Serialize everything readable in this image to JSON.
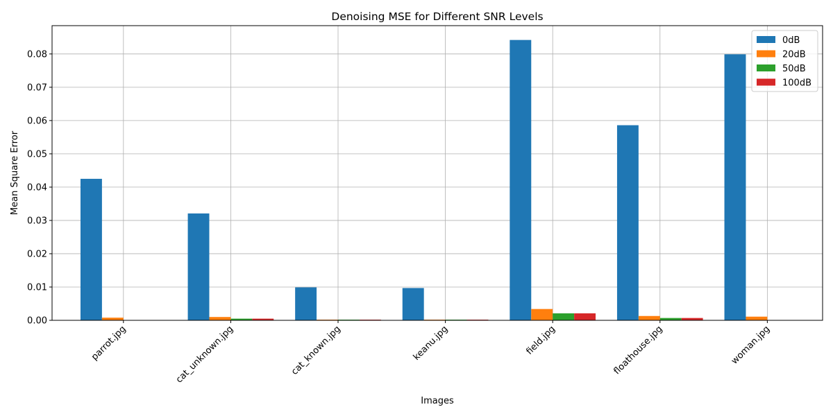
{
  "chart_data": {
    "type": "bar",
    "title": "Denoising MSE for Different SNR Levels",
    "xlabel": "Images",
    "ylabel": "Mean Square Error",
    "categories": [
      "parrot.jpg",
      "cat_unknown.jpg",
      "cat_known.jpg",
      "keanu.jpg",
      "field.jpg",
      "floathouse.jpg",
      "woman.jpg"
    ],
    "series": [
      {
        "name": "0dB",
        "color": "#1f77b4",
        "values": [
          0.0425,
          0.0321,
          0.0099,
          0.0097,
          0.0842,
          0.0586,
          0.0799
        ]
      },
      {
        "name": "20dB",
        "color": "#ff7f0e",
        "values": [
          0.0008,
          0.001,
          0.0002,
          0.0002,
          0.0034,
          0.0013,
          0.0011
        ]
      },
      {
        "name": "50dB",
        "color": "#2ca02c",
        "values": [
          0.0,
          0.0005,
          0.0002,
          0.0002,
          0.0021,
          0.0007,
          0.0
        ]
      },
      {
        "name": "100dB",
        "color": "#d62728",
        "values": [
          0.0,
          0.0005,
          0.0002,
          0.0002,
          0.0021,
          0.0007,
          0.0
        ]
      }
    ],
    "ylim": [
      0,
      0.0885
    ],
    "yticks": [
      "0.00",
      "0.01",
      "0.02",
      "0.03",
      "0.04",
      "0.05",
      "0.06",
      "0.07",
      "0.08"
    ],
    "grid": true,
    "legend_position": "top-right"
  }
}
